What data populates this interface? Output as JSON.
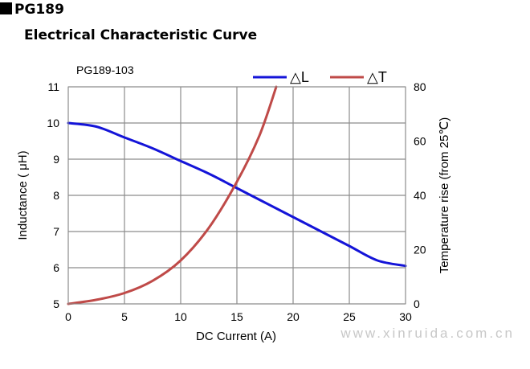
{
  "header": {
    "part_number": "PG189",
    "subtitle": "Electrical Characteristic Curve"
  },
  "watermark": "www.xinruida.com.cn",
  "colors": {
    "delta_l": "#1414d8",
    "delta_t": "#bf4a48",
    "grid": "#8c8c8c"
  },
  "chart_data": {
    "type": "line",
    "title": "PG189-103",
    "xlabel": "DC Current (A)",
    "ylabel": "Inductance ( μH)",
    "y2label": "Temperature rise (from 25℃)",
    "xlim": [
      0,
      30
    ],
    "ylim": [
      5,
      11
    ],
    "y2lim": [
      0,
      80
    ],
    "xticks": [
      0,
      5,
      10,
      15,
      20,
      25,
      30
    ],
    "yticks": [
      5,
      6,
      7,
      8,
      9,
      10,
      11
    ],
    "y2ticks": [
      0,
      20,
      40,
      60,
      80
    ],
    "grid": true,
    "legend_position": "top-right",
    "series": [
      {
        "name": "△L",
        "axis": "left",
        "color": "#1414d8",
        "x": [
          0,
          2.5,
          5,
          7.5,
          10,
          12.5,
          15,
          17.5,
          20,
          22.5,
          25,
          27.5,
          30
        ],
        "y": [
          10.0,
          9.9,
          9.6,
          9.3,
          8.95,
          8.6,
          8.2,
          7.8,
          7.4,
          7.0,
          6.6,
          6.2,
          6.05
        ]
      },
      {
        "name": "△T",
        "axis": "right",
        "color": "#bf4a48",
        "x": [
          0,
          2.5,
          5,
          7.5,
          10,
          12.5,
          15,
          17,
          18.5
        ],
        "y": [
          0,
          1.5,
          4,
          8.5,
          16,
          28,
          45,
          62,
          80
        ]
      }
    ]
  }
}
